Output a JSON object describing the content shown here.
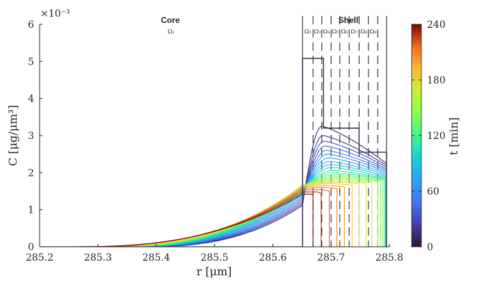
{
  "chart_data": {
    "type": "line",
    "title": "",
    "xlabel": "r [μm]",
    "ylabel": "C [μg/μm³]",
    "y_exponent_label": "×10⁻³",
    "xlim": [
      285.2,
      285.8
    ],
    "ylim": [
      0,
      6
    ],
    "xticks": [
      285.2,
      285.3,
      285.4,
      285.5,
      285.6,
      285.7,
      285.8
    ],
    "xtick_labels": [
      "285.2",
      "285.3",
      "285.4",
      "285.5",
      "285.6",
      "285.7",
      "285.8"
    ],
    "yticks": [
      0,
      1,
      2,
      3,
      4,
      5,
      6
    ],
    "ytick_labels": [
      "0",
      "1",
      "2",
      "3",
      "4",
      "5",
      "6"
    ],
    "regions": {
      "core_label": "Core",
      "core_subdomain": "Ω₁",
      "shell_label": "Shell",
      "shell_subdomains": [
        "Ω₂",
        "Ω₃",
        "Ω₄",
        "Ω₅",
        "Ω₆",
        "Ω₇",
        "Ω₈",
        "Ω₉"
      ]
    },
    "interface_r": 285.651,
    "shell_outer_r": 285.795,
    "subdomain_boundaries": [
      285.651,
      285.669,
      285.684,
      285.7,
      285.715,
      285.731,
      285.748,
      285.764,
      285.78,
      285.795
    ],
    "initial_profile": {
      "time_min": 0,
      "x": [
        285.651,
        285.651,
        285.687,
        285.687,
        285.748,
        285.748,
        285.795,
        285.795
      ],
      "y": [
        0,
        5.08,
        5.08,
        3.2,
        3.2,
        2.55,
        2.55,
        0
      ]
    },
    "series": [
      {
        "name": "t = 10 min",
        "time_min": 10,
        "core_level": 1.12,
        "peak": 3.25,
        "peak_r": 285.684,
        "outer_value": 2.25,
        "front_r": 285.795
      },
      {
        "name": "t = 20 min",
        "time_min": 20,
        "core_level": 1.17,
        "peak": 3.0,
        "peak_r": 285.686,
        "outer_value": 2.2,
        "front_r": 285.795
      },
      {
        "name": "t = 30 min",
        "time_min": 30,
        "core_level": 1.22,
        "peak": 2.85,
        "peak_r": 285.688,
        "outer_value": 2.15,
        "front_r": 285.795
      },
      {
        "name": "t = 40 min",
        "time_min": 40,
        "core_level": 1.27,
        "peak": 2.72,
        "peak_r": 285.69,
        "outer_value": 2.1,
        "front_r": 285.795
      },
      {
        "name": "t = 50 min",
        "time_min": 50,
        "core_level": 1.32,
        "peak": 2.6,
        "peak_r": 285.692,
        "outer_value": 2.06,
        "front_r": 285.795
      },
      {
        "name": "t = 60 min",
        "time_min": 60,
        "core_level": 1.37,
        "peak": 2.5,
        "peak_r": 285.694,
        "outer_value": 2.02,
        "front_r": 285.795
      },
      {
        "name": "t = 70 min",
        "time_min": 70,
        "core_level": 1.42,
        "peak": 2.4,
        "peak_r": 285.696,
        "outer_value": 1.98,
        "front_r": 285.794
      },
      {
        "name": "t = 80 min",
        "time_min": 80,
        "core_level": 1.46,
        "peak": 2.3,
        "peak_r": 285.698,
        "outer_value": 1.94,
        "front_r": 285.794
      },
      {
        "name": "t = 90 min",
        "time_min": 90,
        "core_level": 1.5,
        "peak": 2.22,
        "peak_r": 285.7,
        "outer_value": 1.9,
        "front_r": 285.794
      },
      {
        "name": "t = 100 min",
        "time_min": 100,
        "core_level": 1.54,
        "peak": 2.14,
        "peak_r": 285.702,
        "outer_value": 1.87,
        "front_r": 285.793
      },
      {
        "name": "t = 110 min",
        "time_min": 110,
        "core_level": 1.57,
        "peak": 2.06,
        "peak_r": 285.704,
        "outer_value": 1.84,
        "front_r": 285.793
      },
      {
        "name": "t = 120 min",
        "time_min": 120,
        "core_level": 1.6,
        "peak": 2.0,
        "peak_r": 285.706,
        "outer_value": 1.82,
        "front_r": 285.792
      },
      {
        "name": "t = 130 min",
        "time_min": 130,
        "core_level": 1.62,
        "peak": 1.95,
        "peak_r": 285.708,
        "outer_value": 1.8,
        "front_r": 285.789
      },
      {
        "name": "t = 140 min",
        "time_min": 140,
        "core_level": 1.64,
        "peak": 1.9,
        "peak_r": 285.71,
        "outer_value": 1.78,
        "front_r": 285.785
      },
      {
        "name": "t = 150 min",
        "time_min": 150,
        "core_level": 1.65,
        "peak": 1.86,
        "peak_r": 285.712,
        "outer_value": 1.76,
        "front_r": 285.78
      },
      {
        "name": "t = 160 min",
        "time_min": 160,
        "core_level": 1.66,
        "peak": 1.82,
        "peak_r": 285.712,
        "outer_value": 1.74,
        "front_r": 285.77
      },
      {
        "name": "t = 170 min",
        "time_min": 170,
        "core_level": 1.66,
        "peak": 1.78,
        "peak_r": 285.71,
        "outer_value": 1.72,
        "front_r": 285.76
      },
      {
        "name": "t = 180 min",
        "time_min": 180,
        "core_level": 1.65,
        "peak": 1.74,
        "peak_r": 285.706,
        "outer_value": 1.7,
        "front_r": 285.748
      },
      {
        "name": "t = 190 min",
        "time_min": 190,
        "core_level": 1.63,
        "peak": 1.7,
        "peak_r": 285.702,
        "outer_value": 1.66,
        "front_r": 285.736
      },
      {
        "name": "t = 200 min",
        "time_min": 200,
        "core_level": 1.6,
        "peak": 1.65,
        "peak_r": 285.696,
        "outer_value": 1.62,
        "front_r": 285.723
      },
      {
        "name": "t = 210 min",
        "time_min": 210,
        "core_level": 1.57,
        "peak": 1.6,
        "peak_r": 285.69,
        "outer_value": 1.57,
        "front_r": 285.71
      },
      {
        "name": "t = 220 min",
        "time_min": 220,
        "core_level": 1.53,
        "peak": 1.54,
        "peak_r": 285.684,
        "outer_value": 1.5,
        "front_r": 285.697
      },
      {
        "name": "t = 230 min",
        "time_min": 230,
        "core_level": 1.48,
        "peak": 1.48,
        "peak_r": 285.676,
        "outer_value": 1.44,
        "front_r": 285.683
      },
      {
        "name": "t = 240 min",
        "time_min": 240,
        "core_level": 1.42,
        "peak": 1.42,
        "peak_r": 285.668,
        "outer_value": 1.38,
        "front_r": 285.669
      }
    ],
    "colorbar": {
      "label": "t [min]",
      "min": 0,
      "max": 240,
      "ticks": [
        0,
        60,
        120,
        180,
        240
      ],
      "tick_labels": [
        "0",
        "60",
        "120",
        "180",
        "240"
      ],
      "colormap": "turbo"
    }
  }
}
